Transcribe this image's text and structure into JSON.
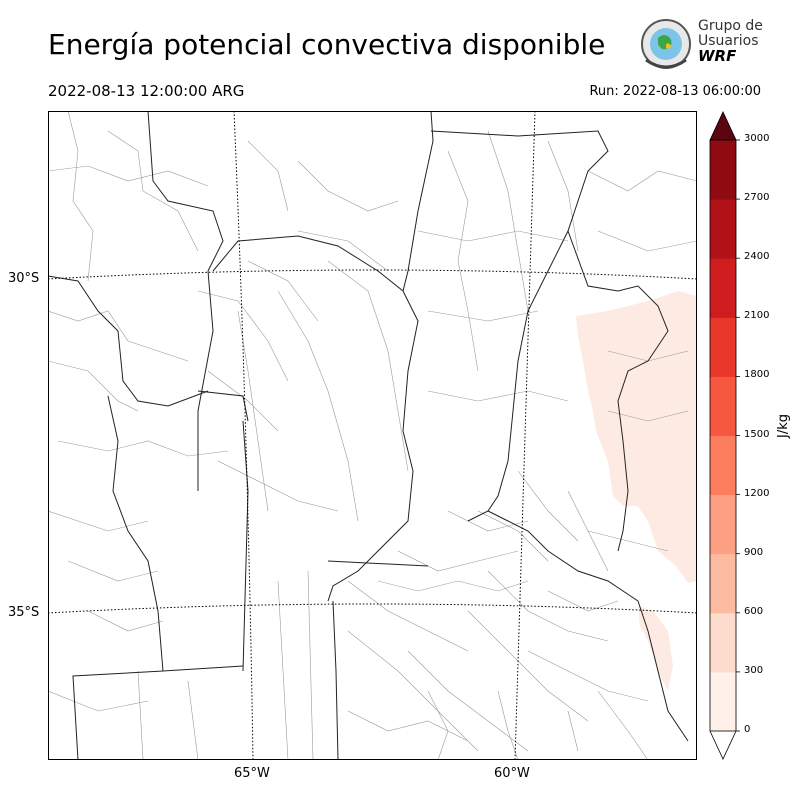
{
  "title": "Energía potencial convectiva disponible",
  "valid_time": "2022-08-13 12:00:00 ARG",
  "run_time": "Run: 2022-08-13 06:00:00",
  "logo": {
    "line1": "Grupo de",
    "line2": "Usuarios",
    "line3": "WRF"
  },
  "map": {
    "lat_labels": [
      "30°S",
      "35°S"
    ],
    "lon_labels": [
      "65°W",
      "60°W"
    ],
    "border_color": "#222222",
    "admin_color": "#9a9a9a",
    "graticule": "dotted"
  },
  "colorbar": {
    "unit": "J/kg",
    "ticks": [
      "0",
      "300",
      "600",
      "900",
      "1200",
      "1500",
      "1800",
      "2100",
      "2400",
      "2700",
      "3000"
    ],
    "colors": [
      "#fff0ea",
      "#fedccd",
      "#fcbba1",
      "#fc9f82",
      "#fb7d5d",
      "#f6573f",
      "#e9372b",
      "#cf1c1f",
      "#b11218",
      "#900a12",
      "#6b0710"
    ],
    "over_color": "#5a0510",
    "under_color": "#ffffff"
  },
  "field": {
    "max_shown_level": "0-300 J/kg",
    "region": "eastern Uruguay / Río de la Plata coast"
  }
}
